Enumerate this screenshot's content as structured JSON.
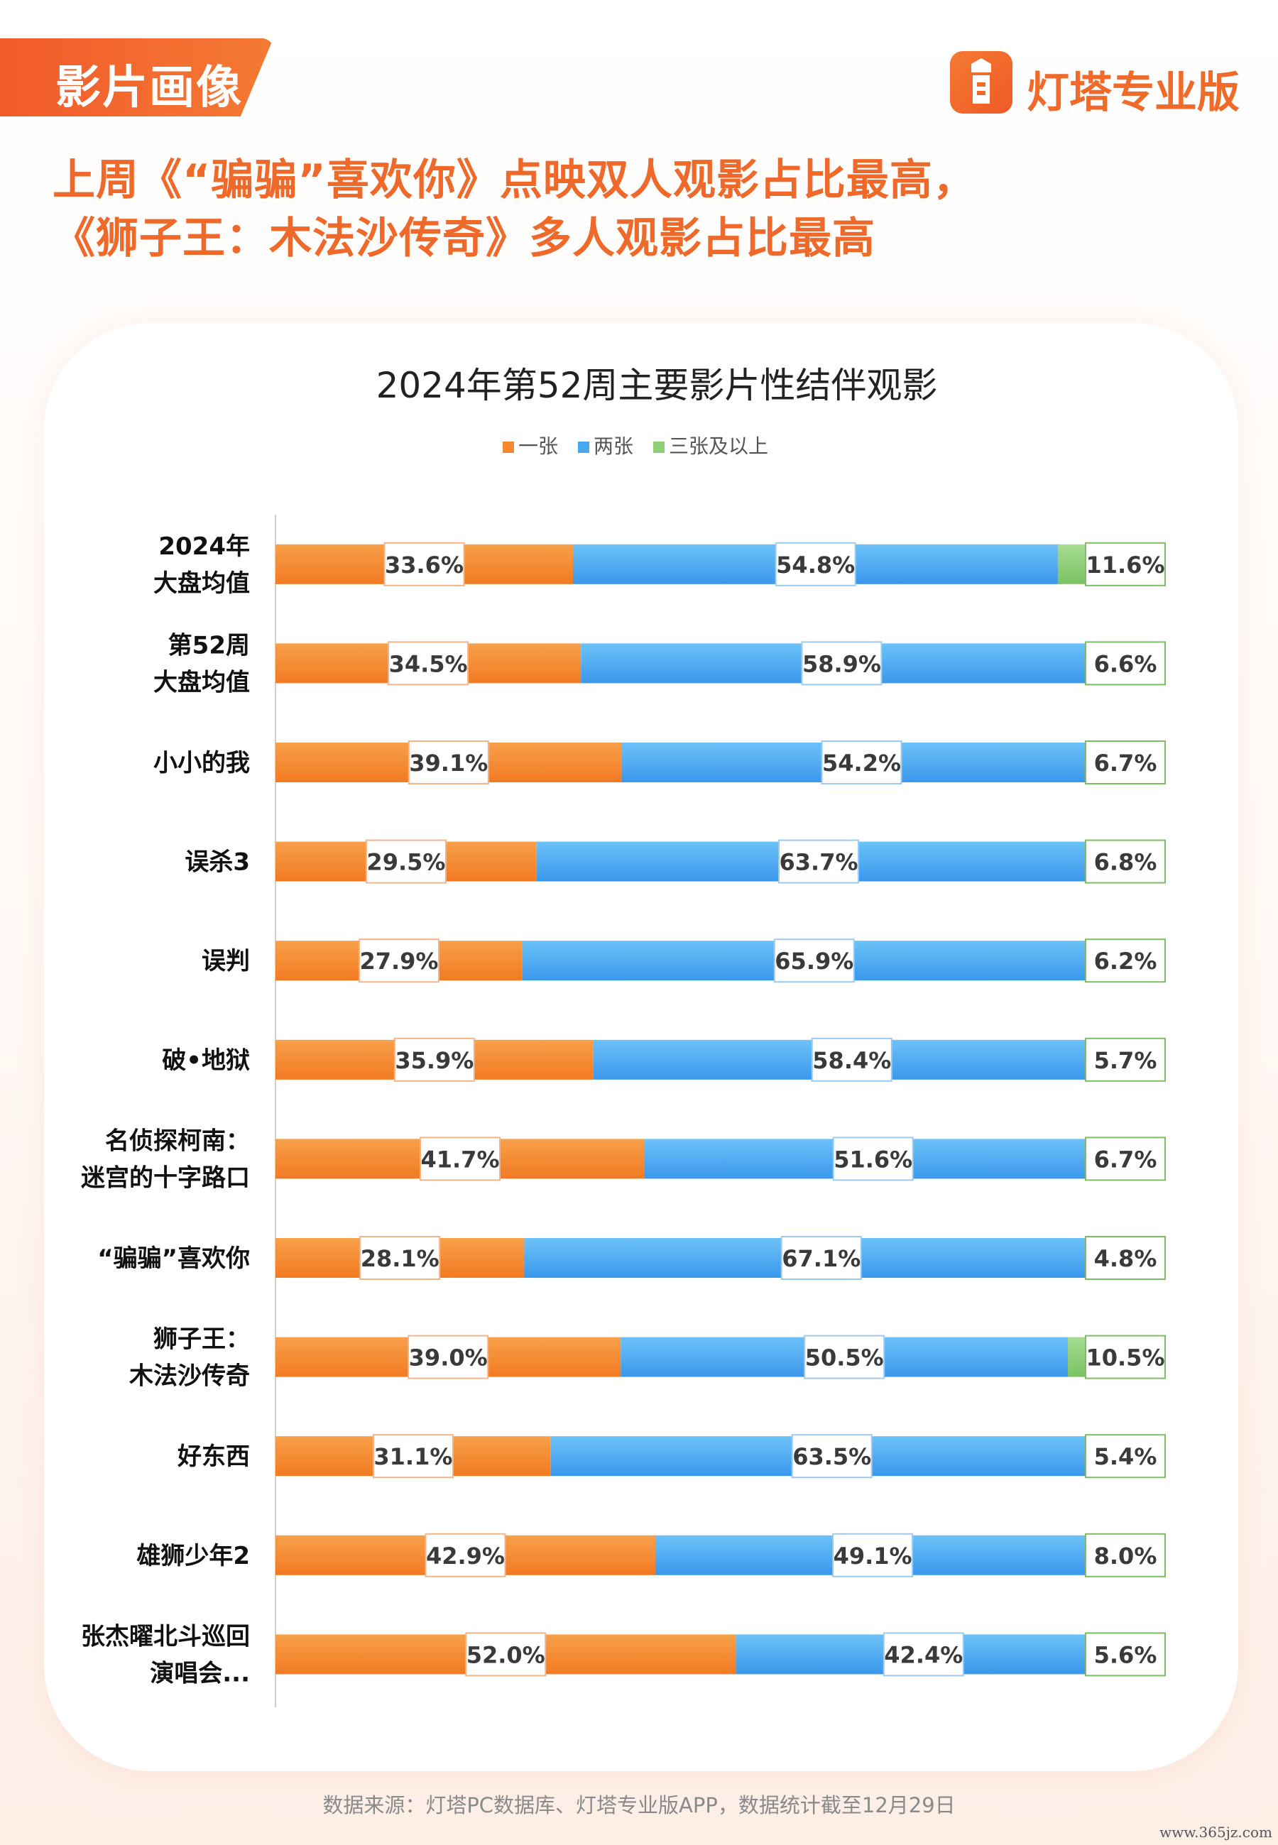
{
  "header": {
    "tag": "影片画像",
    "brand": "灯塔专业版",
    "headline_1": "上周《“骗骗”喜欢你》点映双人观影占比最高，",
    "headline_2": "《狮子王：木法沙传奇》多人观影占比最高"
  },
  "colors": {
    "accent": "#f06a2a",
    "one_ticket": "#f5872f",
    "two_tickets": "#4aa8f0",
    "three_plus": "#8fcf7a"
  },
  "chart_data": {
    "type": "bar",
    "orientation": "horizontal",
    "stacked": true,
    "percent": true,
    "title": "2024年第52周主要影片性结伴观影",
    "legend_position": "top",
    "categories": [
      [
        "2024年",
        "大盘均值"
      ],
      [
        "第52周",
        "大盘均值"
      ],
      [
        "小小的我"
      ],
      [
        "误杀3"
      ],
      [
        "误判"
      ],
      [
        "破•地狱"
      ],
      [
        "名侦探柯南：",
        "迷宫的十字路口"
      ],
      [
        "“骗骗”喜欢你"
      ],
      [
        "狮子王：",
        "木法沙传奇"
      ],
      [
        "好东西"
      ],
      [
        "雄狮少年2"
      ],
      [
        "张杰曜北斗巡回",
        "演唱会..."
      ]
    ],
    "series": [
      {
        "name": "一张",
        "color": "#f5872f",
        "values": [
          33.6,
          34.5,
          39.1,
          29.5,
          27.9,
          35.9,
          41.7,
          28.1,
          39.0,
          31.1,
          42.9,
          52.0
        ]
      },
      {
        "name": "两张",
        "color": "#4aa8f0",
        "values": [
          54.8,
          58.9,
          54.2,
          63.7,
          65.9,
          58.4,
          51.6,
          67.1,
          50.5,
          63.5,
          49.1,
          42.4
        ]
      },
      {
        "name": "三张及以上",
        "color": "#8fcf7a",
        "values": [
          11.6,
          6.6,
          6.7,
          6.8,
          6.2,
          5.7,
          6.7,
          4.8,
          10.5,
          5.4,
          8.0,
          5.6
        ]
      }
    ],
    "value_suffix": "%",
    "grid": false
  },
  "footer": {
    "source": "数据来源：灯塔PC数据库、灯塔专业版APP，数据统计截至12月29日",
    "watermark": "www.365jz.com"
  }
}
